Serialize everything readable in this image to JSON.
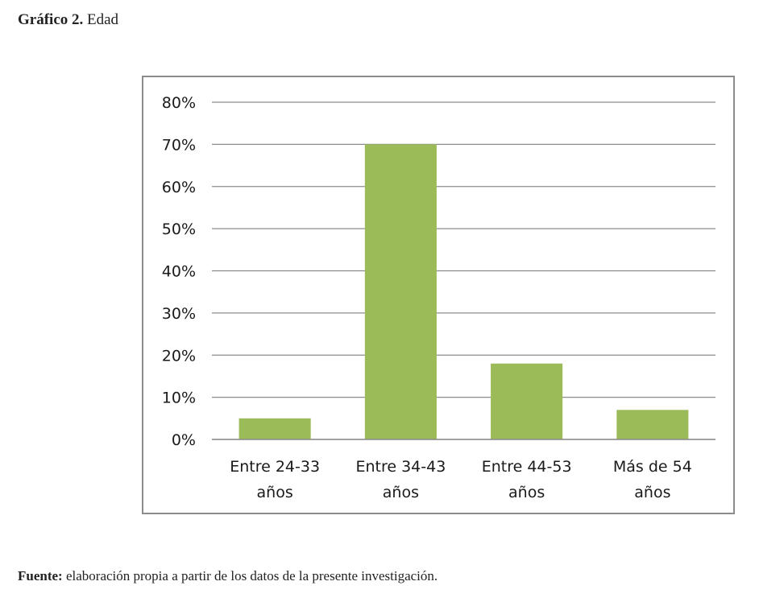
{
  "caption": {
    "label": "Gráfico 2.",
    "text": "Edad"
  },
  "source": {
    "label": "Fuente:",
    "text": "elaboración propia a partir de los datos de la presente investigación."
  },
  "chart_data": {
    "type": "bar",
    "categories": [
      [
        "Entre 24-33",
        "años"
      ],
      [
        "Entre 34-43",
        "años"
      ],
      [
        "Entre 44-53",
        "años"
      ],
      [
        "Más de 54",
        "años"
      ]
    ],
    "values": [
      5,
      70,
      18,
      7
    ],
    "yticks": [
      0,
      10,
      20,
      30,
      40,
      50,
      60,
      70,
      80
    ],
    "ytick_suffix": "%",
    "ylim": [
      0,
      80
    ],
    "grid": true,
    "legend": "none",
    "bar_color": "#9bbb59",
    "grid_color": "#8c8c8c",
    "title": "",
    "xlabel": "",
    "ylabel": ""
  }
}
